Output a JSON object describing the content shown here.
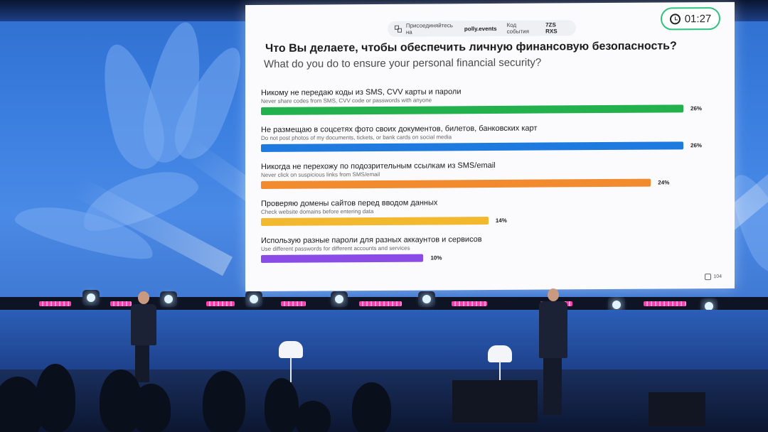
{
  "slide": {
    "join_text": "Присоединяйтесь на",
    "join_brand": "polly.events",
    "join_code_label": "Код события",
    "join_code_value": "7ZS RXS",
    "timer": "01:27",
    "question_ru": "Что Вы делаете, чтобы обеспечить личную финансовую безопасность?",
    "question_en": "What do you do to ensure your personal financial security?",
    "options": [
      {
        "ru": "Никому не передаю коды из SMS, CVV карты и пароли",
        "en": "Never share codes from SMS, CVV code or passwords with anyone",
        "pct_label": "26%",
        "value": 26,
        "color": "#22b14c"
      },
      {
        "ru": "Не размещаю в соцсетях фото своих документов, билетов, банковских карт",
        "en": "Do not post photos of my documents, tickets, or bank cards on social media",
        "pct_label": "26%",
        "value": 26,
        "color": "#1f7ae0"
      },
      {
        "ru": "Никогда не перехожу по подозрительным ссылкам из SMS/email",
        "en": "Never click on suspicious links from SMS/email",
        "pct_label": "24%",
        "value": 24,
        "color": "#f28a2e"
      },
      {
        "ru": "Проверяю домены сайтов перед вводом данных",
        "en": "Check website domains before entering data",
        "pct_label": "14%",
        "value": 14,
        "color": "#f2b92e"
      },
      {
        "ru": "Использую разные пароли для разных аккаунтов и сервисов",
        "en": "Use different passwords for different accounts and services",
        "pct_label": "10%",
        "value": 10,
        "color": "#8a4be6"
      }
    ],
    "responses": "104"
  },
  "colors": {
    "timer_border": "#2ec27e",
    "backdrop": "#3b7fe0",
    "led": "#ff3ea8"
  }
}
